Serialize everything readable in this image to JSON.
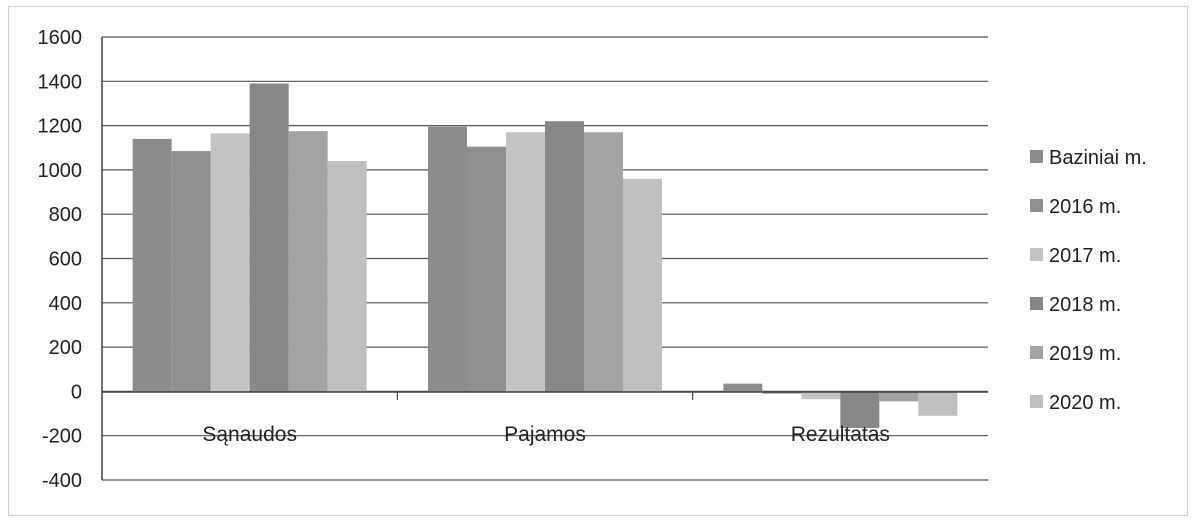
{
  "chart_data": {
    "type": "bar",
    "categories": [
      "Sąnaudos",
      "Pajamos",
      "Rezultatas"
    ],
    "series": [
      {
        "name": "Baziniai m.",
        "values": [
          1140,
          1195,
          35
        ],
        "color": "#8c8c8c"
      },
      {
        "name": "2016 m.",
        "values": [
          1085,
          1105,
          -10
        ],
        "color": "#8f8f8f"
      },
      {
        "name": "2017 m.",
        "values": [
          1165,
          1170,
          -35
        ],
        "color": "#c4c4c4"
      },
      {
        "name": "2018 m.",
        "values": [
          1390,
          1220,
          -165
        ],
        "color": "#878787"
      },
      {
        "name": "2019 m.",
        "values": [
          1175,
          1170,
          -45
        ],
        "color": "#a3a3a3"
      },
      {
        "name": "2020 m.",
        "values": [
          1040,
          960,
          -110
        ],
        "color": "#bfbfbf"
      }
    ],
    "yticks": [
      1600,
      1400,
      1200,
      1000,
      800,
      600,
      400,
      200,
      0,
      -200,
      -400
    ],
    "ylim": [
      -400,
      1600
    ],
    "grid": true,
    "legend": "right"
  }
}
